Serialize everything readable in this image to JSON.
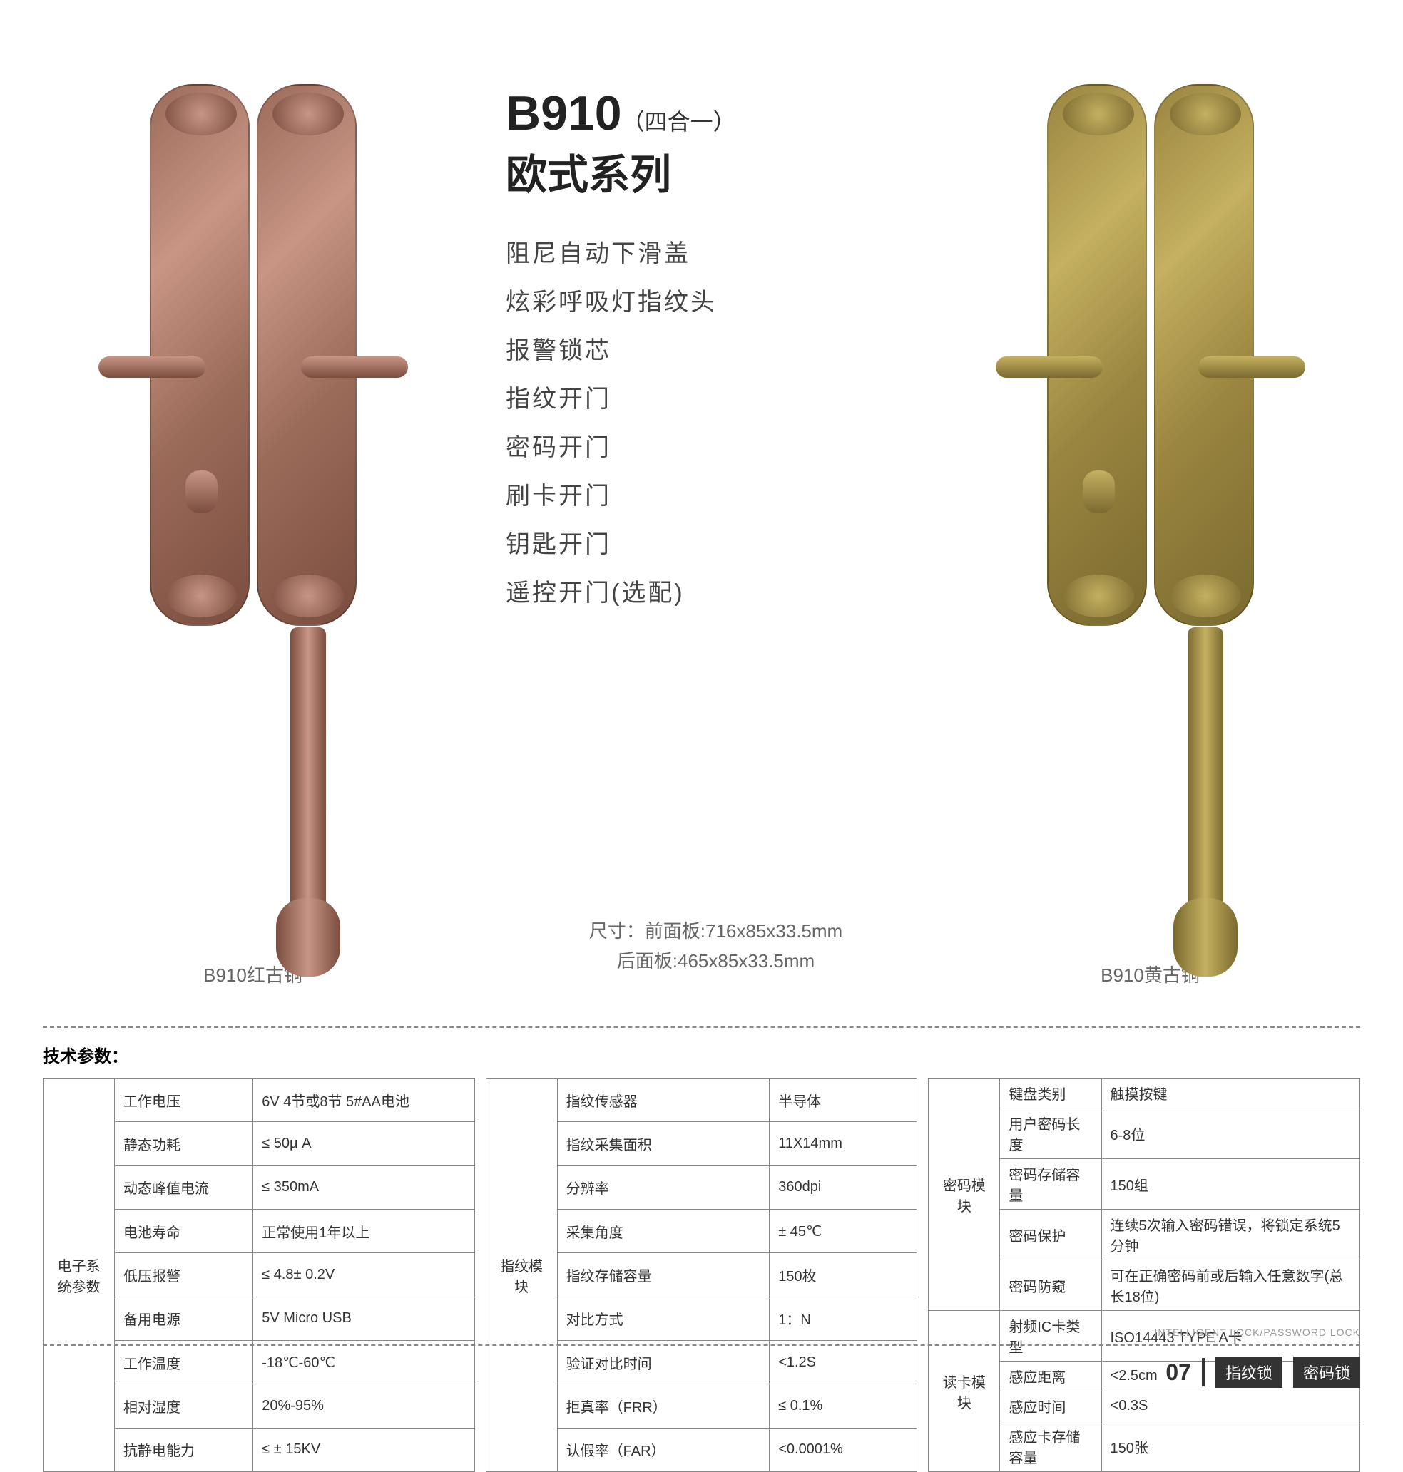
{
  "product": {
    "model": "B910",
    "model_suffix": "（四合一）",
    "series": "欧式系列",
    "features": [
      "阻尼自动下滑盖",
      "炫彩呼吸灯指纹头",
      "报警锁芯",
      "指纹开门",
      "密码开门",
      "刷卡开门",
      "钥匙开门",
      "遥控开门(选配)"
    ],
    "dim_front": "尺寸：前面板:716x85x33.5mm",
    "dim_back": "后面板:465x85x33.5mm",
    "variant_left": "B910红古铜",
    "variant_right": "B910黄古铜",
    "colors": {
      "copper": "#9b6b5a",
      "brass": "#a08940"
    }
  },
  "specs": {
    "title": "技术参数：",
    "tables": [
      {
        "group": "电子系统参数",
        "rows": [
          [
            "工作电压",
            "6V 4节或8节 5#AA电池"
          ],
          [
            "静态功耗",
            "≤ 50μ A"
          ],
          [
            "动态峰值电流",
            "≤ 350mA"
          ],
          [
            "电池寿命",
            "正常使用1年以上"
          ],
          [
            "低压报警",
            "≤ 4.8± 0.2V"
          ],
          [
            "备用电源",
            "5V Micro USB"
          ],
          [
            "工作温度",
            "-18℃-60℃"
          ],
          [
            "相对湿度",
            "20%-95%"
          ],
          [
            "抗静电能力",
            "≤ ± 15KV"
          ]
        ]
      },
      {
        "group": "指纹模块",
        "rows": [
          [
            "指纹传感器",
            "半导体"
          ],
          [
            "指纹采集面积",
            "11X14mm"
          ],
          [
            "分辨率",
            "360dpi"
          ],
          [
            "采集角度",
            "± 45℃"
          ],
          [
            "指纹存储容量",
            "150枚"
          ],
          [
            "对比方式",
            "1：N"
          ],
          [
            "验证对比时间",
            "<1.2S"
          ],
          [
            "拒真率（FRR）",
            "≤ 0.1%"
          ],
          [
            "认假率（FAR）",
            "<0.0001%"
          ]
        ]
      },
      {
        "group_a": "密码模块",
        "rows_a": [
          [
            "键盘类别",
            "触摸按键"
          ],
          [
            "用户密码长度",
            "6-8位"
          ],
          [
            "密码存储容量",
            "150组"
          ],
          [
            "密码保护",
            "连续5次输入密码错误，将锁定系统5分钟"
          ],
          [
            "密码防窥",
            "可在正确密码前或后输入任意数字(总长18位)"
          ]
        ],
        "group_b": "读卡模块",
        "rows_b": [
          [
            "射频IC卡类型",
            "ISO14443  TYPE A卡"
          ],
          [
            "感应距离",
            "<2.5cm"
          ],
          [
            "感应时间",
            "<0.3S"
          ],
          [
            "感应卡存储容量",
            "150张"
          ]
        ]
      }
    ]
  },
  "footer": {
    "page": "07",
    "badge1": "指纹锁",
    "badge2": "密码锁",
    "subtitle": "INTELLIGENT LOCK/PASSWORD LOCK"
  }
}
